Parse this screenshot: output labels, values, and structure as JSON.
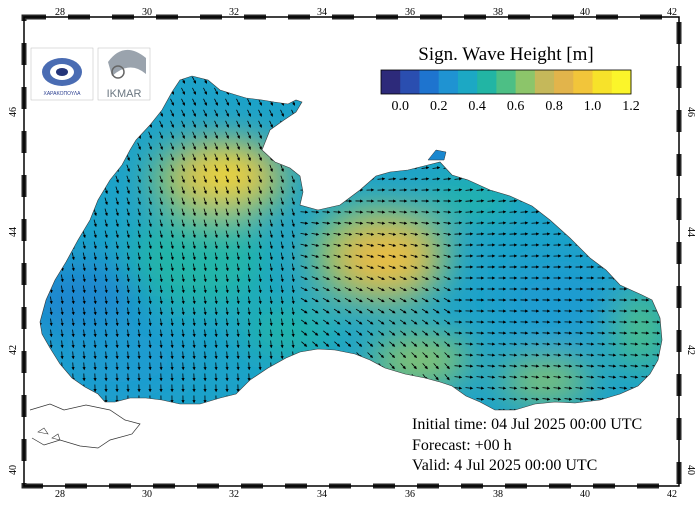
{
  "legend": {
    "title": "Sign. Wave Height [m]",
    "ticks": [
      "0.0",
      "0.2",
      "0.4",
      "0.6",
      "0.8",
      "1.0",
      "1.2"
    ],
    "colors": [
      "#2d2a7a",
      "#2a4eb0",
      "#1e74cf",
      "#1f93d2",
      "#1ca8c4",
      "#22b5a4",
      "#4dbf85",
      "#8cc56a",
      "#c5b85a",
      "#e2b44b",
      "#f2c53a",
      "#f7e22a",
      "#fbf52a"
    ]
  },
  "axes": {
    "lon_ticks": [
      "28",
      "30",
      "32",
      "34",
      "36",
      "38",
      "40",
      "42"
    ],
    "lat_ticks": [
      "40",
      "42",
      "44",
      "46"
    ]
  },
  "info": {
    "initial": "Initial time: 04 Jul 2025 00:00 UTC",
    "forecast": "Forecast: +00 h",
    "valid": "Valid:  4 Jul 2025 00:00 UTC"
  },
  "logos": {
    "left_text": "ΧΑΡΑΚΟΠΟΥΛΑ",
    "right_text": "IKMAR"
  }
}
